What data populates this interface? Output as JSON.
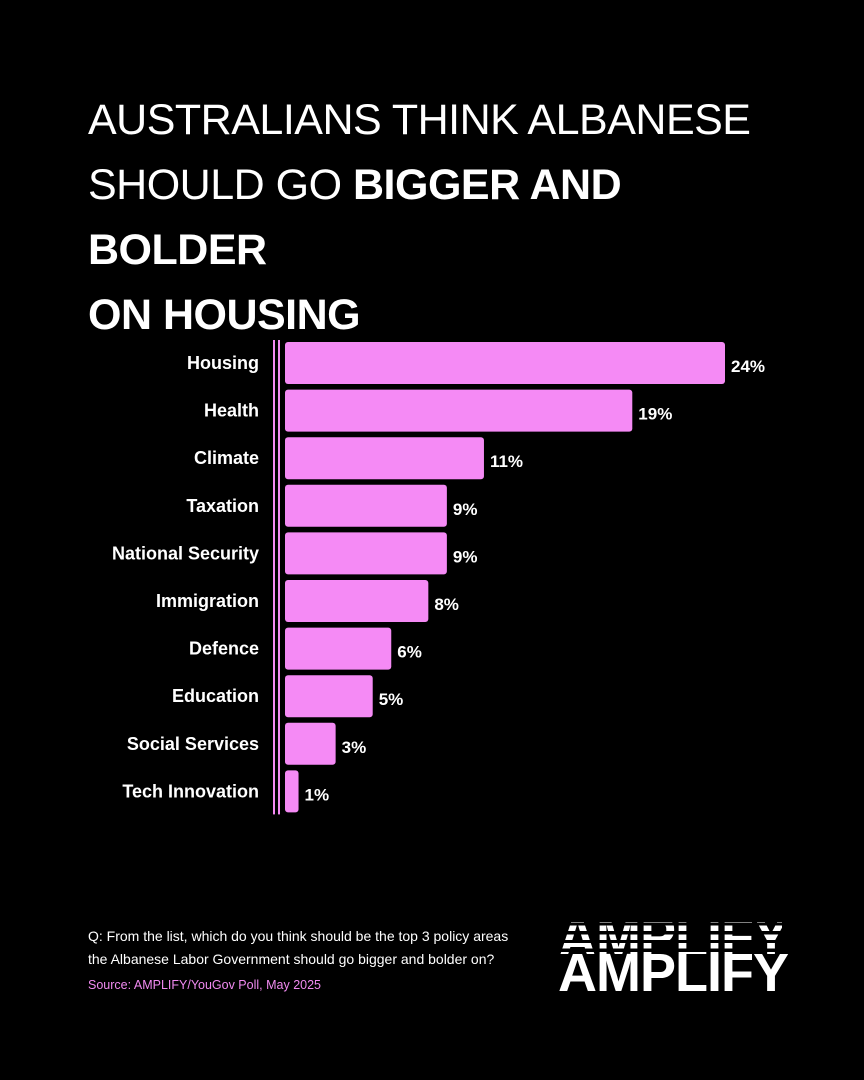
{
  "title": {
    "line1": "AUSTRALIANS THINK ALBANESE",
    "line2_regular": "SHOULD GO ",
    "line2_bold": "BIGGER AND BOLDER",
    "line3_bold": "ON HOUSING"
  },
  "chart_data": {
    "type": "bar",
    "orientation": "horizontal",
    "title": "AUSTRALIANS THINK ALBANESE SHOULD GO BIGGER AND BOLDER ON HOUSING",
    "categories": [
      "Housing",
      "Health",
      "Climate",
      "Taxation",
      "National Security",
      "Immigration",
      "Defence",
      "Education",
      "Social Services",
      "Tech Innovation"
    ],
    "values": [
      24,
      19,
      11,
      9,
      9,
      8,
      6,
      5,
      3,
      1
    ],
    "value_labels": [
      "24%",
      "19%",
      "11%",
      "9%",
      "9%",
      "8%",
      "6%",
      "5%",
      "3%",
      "1%"
    ],
    "unit": "%",
    "xlim": [
      0,
      24
    ],
    "bar_color": "#f58af5",
    "xlabel": "",
    "ylabel": "",
    "grid": false,
    "legend": "none"
  },
  "footer": {
    "question": "Q: From the list, which do you think should be the top 3 policy areas the Albanese Labor Government should go bigger and bolder on?",
    "source": "Source: AMPLIFY/YouGov Poll, May 2025",
    "logo_text": "AMPLIFY"
  },
  "colors": {
    "background": "#000000",
    "bar": "#f58af5",
    "text": "#ffffff",
    "source_text": "#f08af0"
  }
}
